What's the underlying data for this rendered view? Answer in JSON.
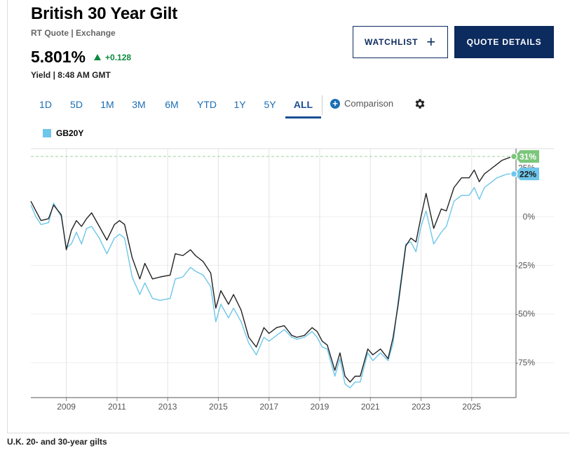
{
  "header": {
    "title": "British 30 Year Gilt",
    "subtitle": "RT Quote | Exchange",
    "price": "5.801%",
    "change": "+0.128",
    "yield_time": "Yield | 8:48 AM GMT"
  },
  "buttons": {
    "watchlist": "WATCHLIST",
    "quote_details": "QUOTE DETAILS"
  },
  "tabs": [
    {
      "label": "1D"
    },
    {
      "label": "5D"
    },
    {
      "label": "1M"
    },
    {
      "label": "3M"
    },
    {
      "label": "6M"
    },
    {
      "label": "YTD"
    },
    {
      "label": "1Y"
    },
    {
      "label": "5Y"
    },
    {
      "label": "ALL",
      "active": true
    }
  ],
  "comparison_label": "Comparison",
  "caption": "U.K. 20- and 30-year gilts",
  "colors": {
    "series_dark": "#222222",
    "series_light": "#6ec6ea",
    "badge_green": "#7bc67a",
    "badge_blue": "#6ec6ea",
    "accent": "#0c2b5e",
    "positive": "#0b8a3e"
  },
  "chart_data": {
    "type": "line",
    "y_unit": "%",
    "ylim": [
      -93,
      35
    ],
    "xlim": [
      2007.6,
      2026.75
    ],
    "x_ticks": [
      "2009",
      "2011",
      "2013",
      "2015",
      "2017",
      "2019",
      "2021",
      "2023",
      "2025"
    ],
    "x_tick_values": [
      2009,
      2011,
      2013,
      2015,
      2017,
      2019,
      2021,
      2023,
      2025
    ],
    "y_ticks": [
      0,
      -25,
      -50,
      -75
    ],
    "y_tick_labels": [
      "0%",
      "-25%",
      "-50%",
      "-75%"
    ],
    "y_tick_partial": "25%",
    "grid": true,
    "legend": "top-left",
    "series": [
      {
        "name": "",
        "x": [
          2007.6,
          2007.8,
          2008.0,
          2008.3,
          2008.5,
          2008.8,
          2009.0,
          2009.2,
          2009.4,
          2009.6,
          2009.8,
          2010.0,
          2010.3,
          2010.6,
          2010.9,
          2011.1,
          2011.3,
          2011.6,
          2011.9,
          2012.1,
          2012.4,
          2012.7,
          2013.1,
          2013.3,
          2013.6,
          2013.9,
          2014.1,
          2014.4,
          2014.7,
          2014.9,
          2015.1,
          2015.4,
          2015.6,
          2015.9,
          2016.2,
          2016.5,
          2016.8,
          2017.0,
          2017.3,
          2017.6,
          2017.9,
          2018.1,
          2018.4,
          2018.7,
          2018.9,
          2019.1,
          2019.3,
          2019.6,
          2019.8,
          2020.0,
          2020.2,
          2020.4,
          2020.6,
          2020.9,
          2021.1,
          2021.4,
          2021.7,
          2021.9,
          2022.1,
          2022.4,
          2022.6,
          2022.8,
          2023.0,
          2023.2,
          2023.5,
          2023.8,
          2024.0,
          2024.3,
          2024.6,
          2024.9,
          2025.1,
          2025.3,
          2025.5,
          2025.7,
          2026.0,
          2026.2,
          2026.4,
          2026.6,
          2026.75
        ],
        "y": [
          8,
          3,
          -2,
          -1,
          6,
          1,
          -17,
          -7,
          -2,
          -5,
          -1,
          2,
          -5,
          -12,
          -4,
          -2,
          -4,
          -21,
          -32,
          -24,
          -32,
          -31,
          -30,
          -19,
          -20,
          -17,
          -20,
          -23,
          -29,
          -47,
          -38,
          -45,
          -40,
          -48,
          -62,
          -67,
          -57,
          -60,
          -57,
          -56,
          -61,
          -62,
          -61,
          -57,
          -59,
          -64,
          -66,
          -79,
          -70,
          -82,
          -85,
          -82,
          -82,
          -68,
          -71,
          -68,
          -73,
          -62,
          -45,
          -15,
          -11,
          -13,
          0,
          12,
          -6,
          4,
          3,
          15,
          20,
          20,
          24,
          18,
          22,
          24,
          27,
          29,
          30,
          31,
          31
        ],
        "end_label": "31%"
      },
      {
        "name": "GB20Y",
        "x": [
          2007.6,
          2007.8,
          2008.0,
          2008.3,
          2008.5,
          2008.8,
          2009.0,
          2009.2,
          2009.4,
          2009.6,
          2009.8,
          2010.0,
          2010.3,
          2010.6,
          2010.9,
          2011.1,
          2011.3,
          2011.6,
          2011.9,
          2012.1,
          2012.4,
          2012.7,
          2013.1,
          2013.3,
          2013.6,
          2013.9,
          2014.1,
          2014.4,
          2014.7,
          2014.9,
          2015.1,
          2015.4,
          2015.6,
          2015.9,
          2016.2,
          2016.5,
          2016.8,
          2017.0,
          2017.3,
          2017.6,
          2017.9,
          2018.1,
          2018.4,
          2018.7,
          2018.9,
          2019.1,
          2019.3,
          2019.6,
          2019.8,
          2020.0,
          2020.2,
          2020.4,
          2020.6,
          2020.9,
          2021.1,
          2021.4,
          2021.7,
          2021.9,
          2022.1,
          2022.4,
          2022.6,
          2022.8,
          2023.0,
          2023.2,
          2023.5,
          2023.8,
          2024.0,
          2024.3,
          2024.6,
          2024.9,
          2025.1,
          2025.3,
          2025.5,
          2025.7,
          2026.0,
          2026.2,
          2026.4,
          2026.6,
          2026.75
        ],
        "y": [
          6,
          0,
          -4,
          -3,
          7,
          0,
          -16,
          -14,
          -8,
          -14,
          -6,
          -5,
          -11,
          -19,
          -11,
          -9,
          -11,
          -31,
          -40,
          -34,
          -42,
          -43,
          -42,
          -32,
          -31,
          -26,
          -28,
          -30,
          -36,
          -54,
          -45,
          -52,
          -47,
          -54,
          -65,
          -71,
          -62,
          -64,
          -61,
          -58,
          -62,
          -63,
          -62,
          -59,
          -62,
          -67,
          -68,
          -82,
          -73,
          -86,
          -88,
          -85,
          -85,
          -70,
          -74,
          -70,
          -74,
          -65,
          -43,
          -14,
          -13,
          -18,
          -5,
          3,
          -14,
          -8,
          -5,
          8,
          11,
          11,
          15,
          9,
          15,
          17,
          20,
          21,
          22,
          22,
          22
        ],
        "end_label": "22%"
      }
    ]
  }
}
